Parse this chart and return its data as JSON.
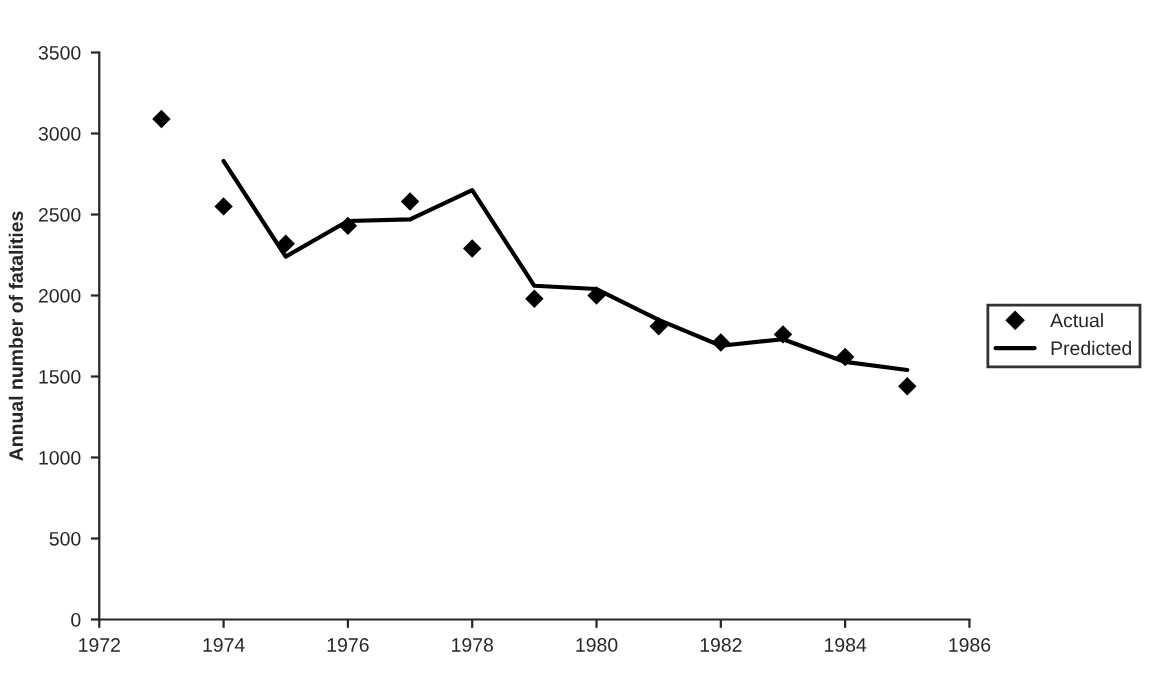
{
  "chart_data": {
    "type": "line",
    "ylabel": "Annual number of fatalities",
    "series": [
      {
        "name": "Actual",
        "type": "scatter",
        "color": "#000000",
        "marker": "diamond",
        "x": [
          1973,
          1974,
          1975,
          1976,
          1977,
          1978,
          1979,
          1980,
          1981,
          1982,
          1983,
          1984,
          1985
        ],
        "values": [
          3090,
          2550,
          2320,
          2430,
          2580,
          2290,
          1980,
          2000,
          1810,
          1710,
          1760,
          1620,
          1440
        ]
      },
      {
        "name": "Predicted",
        "color": "#000000",
        "marker": "none",
        "line_style": "solid",
        "x": [
          1974,
          1975,
          1976,
          1977,
          1978,
          1979,
          1980,
          1981,
          1982,
          1983,
          1984,
          1985
        ],
        "values": [
          2830,
          2240,
          2460,
          2470,
          2650,
          2060,
          2040,
          1850,
          1690,
          1730,
          1590,
          1540
        ]
      }
    ],
    "xlim": [
      1972,
      1986
    ],
    "xticks": [
      1972,
      1974,
      1976,
      1978,
      1980,
      1982,
      1984,
      1986
    ],
    "ylim": [
      0,
      3500
    ],
    "yticks": [
      0,
      500,
      1000,
      1500,
      2000,
      2500,
      3000,
      3500
    ],
    "grid": false,
    "legend": "right"
  }
}
